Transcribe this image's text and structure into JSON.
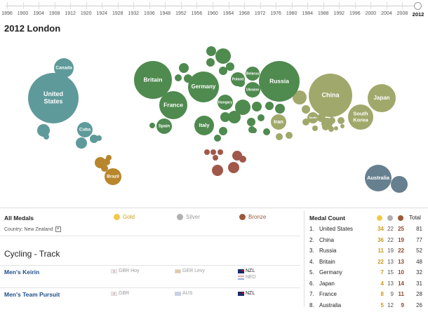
{
  "timeline": {
    "years": [
      "1896",
      "1900",
      "1904",
      "1908",
      "1912",
      "1920",
      "1924",
      "1928",
      "1932",
      "1936",
      "1948",
      "1952",
      "1956",
      "1960",
      "1964",
      "1968",
      "1972",
      "1976",
      "1980",
      "1984",
      "1988",
      "1992",
      "1996",
      "2000",
      "2004",
      "2008",
      "2012"
    ],
    "selected": "2012"
  },
  "title": "2012 London",
  "bubbles": [
    {
      "label": "United States",
      "lines": [
        "United",
        "States"
      ],
      "color": "#5f9a9a"
    },
    {
      "label": "Canada",
      "lines": [
        "Canada"
      ],
      "color": "#5f9a9a"
    },
    {
      "label": "Cuba",
      "lines": [
        "Cuba"
      ],
      "color": "#5f9a9a"
    },
    {
      "label": "Brazil",
      "lines": [
        "Brazil"
      ],
      "color": "#b8862c"
    },
    {
      "label": "Britain",
      "lines": [
        "Britain"
      ],
      "color": "#4f8a4f"
    },
    {
      "label": "Germany",
      "lines": [
        "Germany"
      ],
      "color": "#4f8a4f"
    },
    {
      "label": "France",
      "lines": [
        "France"
      ],
      "color": "#4f8a4f"
    },
    {
      "label": "Italy",
      "lines": [
        "Italy"
      ],
      "color": "#4f8a4f"
    },
    {
      "label": "Spain",
      "lines": [
        "Spain"
      ],
      "color": "#4f8a4f"
    },
    {
      "label": "Hungary",
      "lines": [
        "Hungary"
      ],
      "color": "#4f8a4f"
    },
    {
      "label": "Poland",
      "lines": [
        "Poland"
      ],
      "color": "#4f8a4f"
    },
    {
      "label": "Belarus",
      "lines": [
        "Belarus"
      ],
      "color": "#4f8a4f"
    },
    {
      "label": "Ukraine",
      "lines": [
        "Ukraine"
      ],
      "color": "#4f8a4f"
    },
    {
      "label": "Russia",
      "lines": [
        "Russia"
      ],
      "color": "#4f8a4f"
    },
    {
      "label": "Iran",
      "lines": [
        "Iran"
      ],
      "color": "#a1a86b"
    },
    {
      "label": "China",
      "lines": [
        "China"
      ],
      "color": "#a1a86b"
    },
    {
      "label": "Japan",
      "lines": [
        "Japan"
      ],
      "color": "#a1a86b"
    },
    {
      "label": "South Korea",
      "lines": [
        "South",
        "Korea"
      ],
      "color": "#a1a86b"
    },
    {
      "label": "South Korea small",
      "lines": [
        "South"
      ],
      "color": "#a1a86b"
    },
    {
      "label": "Australia",
      "lines": [
        "Australia"
      ],
      "color": "#67808f"
    }
  ],
  "colors": {
    "americas": "#5f9a9a",
    "latin": "#b8862c",
    "europe": "#4f8a4f",
    "asia": "#a1a86b",
    "africa": "#a0584a",
    "oceania": "#67808f",
    "gold": "#f2c94c",
    "silver": "#b0b0b0",
    "bronze": "#9a5a3a"
  },
  "legend": {
    "title": "All Medals",
    "gold": "Gold",
    "silver": "Silver",
    "bronze": "Bronze",
    "filter_label": "Country: New Zealand",
    "filter_clear": "×"
  },
  "sport": "Cycling - Track",
  "events": [
    {
      "name": "Men's Keirin",
      "gold": "GBR  Hoy",
      "silver": "GER  Levy",
      "bronze": [
        "NZL",
        "NED"
      ]
    },
    {
      "name": "Men's Team Pursuit",
      "gold": "GBR",
      "silver": "AUS",
      "bronze": [
        "NZL"
      ]
    }
  ],
  "medal_count": {
    "title": "Medal Count",
    "total_label": "Total",
    "rows": [
      {
        "rank": "1.",
        "country": "United States",
        "gold": "34",
        "silver": "22",
        "bronze": "25",
        "total": "81"
      },
      {
        "rank": "2.",
        "country": "China",
        "gold": "36",
        "silver": "22",
        "bronze": "19",
        "total": "77"
      },
      {
        "rank": "3.",
        "country": "Russia",
        "gold": "11",
        "silver": "19",
        "bronze": "22",
        "total": "52"
      },
      {
        "rank": "4.",
        "country": "Britain",
        "gold": "22",
        "silver": "13",
        "bronze": "13",
        "total": "48"
      },
      {
        "rank": "5.",
        "country": "Germany",
        "gold": "7",
        "silver": "15",
        "bronze": "10",
        "total": "32"
      },
      {
        "rank": "6.",
        "country": "Japan",
        "gold": "4",
        "silver": "13",
        "bronze": "14",
        "total": "31"
      },
      {
        "rank": "7.",
        "country": "France",
        "gold": "8",
        "silver": "9",
        "bronze": "11",
        "total": "28"
      },
      {
        "rank": "8.",
        "country": "Australia",
        "gold": "5",
        "silver": "12",
        "bronze": "9",
        "total": "26"
      }
    ]
  }
}
